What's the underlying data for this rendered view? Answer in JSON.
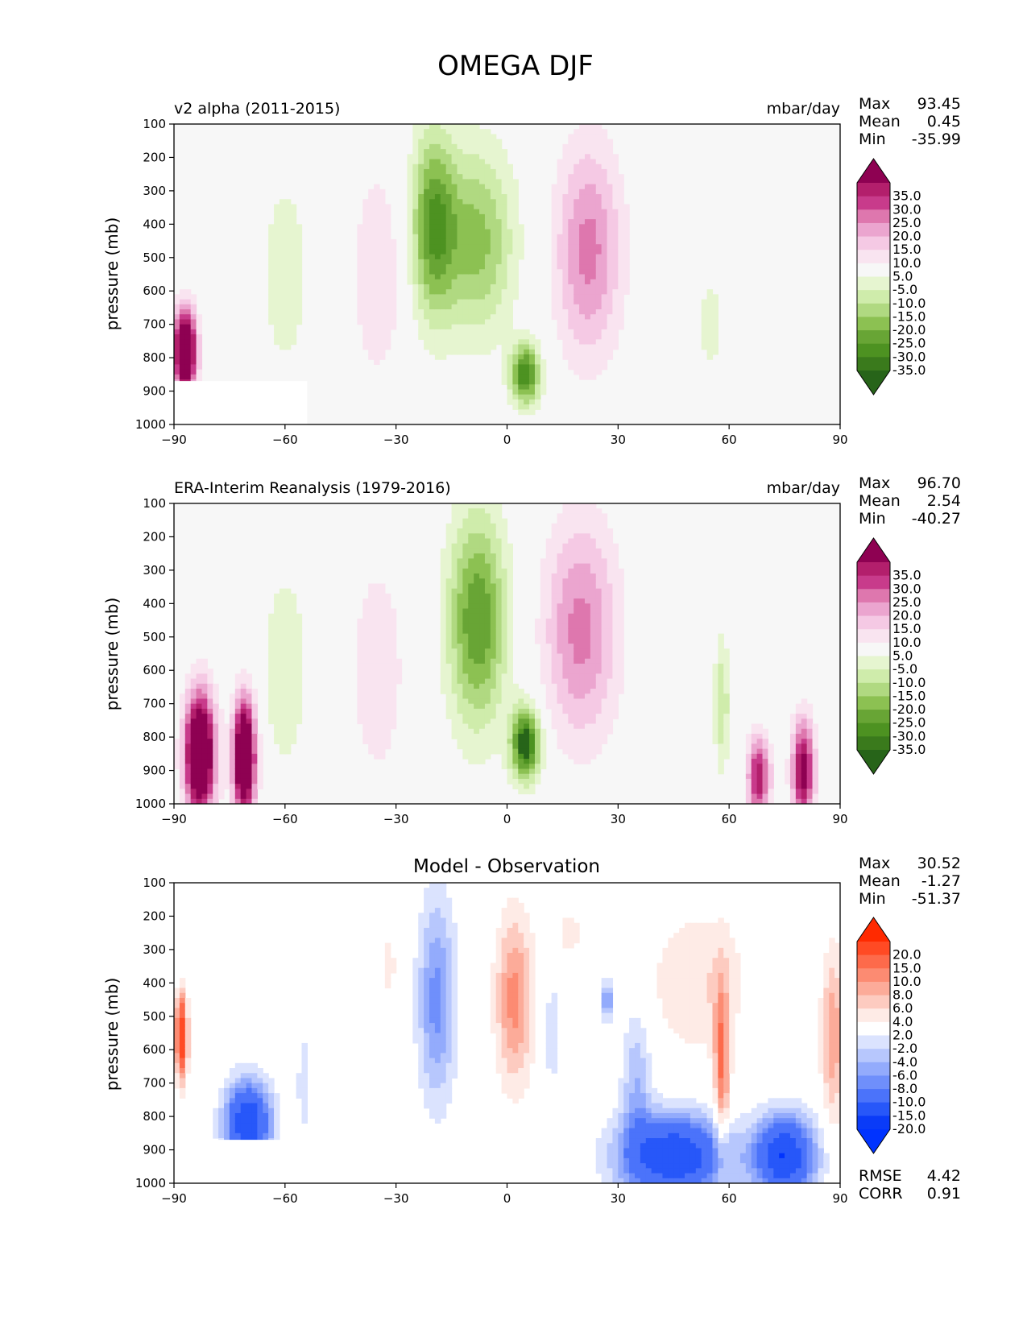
{
  "figure_title": "OMEGA DJF",
  "chart_data": [
    {
      "type": "heatmap",
      "title_left": "v2 alpha (2011-2015)",
      "units": "mbar/day",
      "ylabel": "pressure (mb)",
      "xlim": [
        -90,
        90
      ],
      "ylim": [
        100,
        1000
      ],
      "xticks": [
        "−90",
        "−60",
        "−30",
        "0",
        "30",
        "60",
        "90"
      ],
      "yticks": [
        "100",
        "200",
        "300",
        "400",
        "500",
        "600",
        "700",
        "800",
        "900",
        "1000"
      ],
      "stats": {
        "max_label": "Max",
        "max": "93.45",
        "mean_label": "Mean",
        "mean": "0.45",
        "min_label": "Min",
        "min": "-35.99"
      },
      "colorbar_labels": [
        "35.0",
        "30.0",
        "25.0",
        "20.0",
        "15.0",
        "10.0",
        "5.0",
        "-5.0",
        "-10.0",
        "-15.0",
        "-20.0",
        "-25.0",
        "-30.0",
        "-35.0"
      ],
      "colorbar_colors": [
        "#8e0152",
        "#b31f6c",
        "#c83b8b",
        "#de77ae",
        "#eba5cf",
        "#f5c9e4",
        "#f9e4f0",
        "#f7f7f7",
        "#e6f5d0",
        "#cfecab",
        "#b0d981",
        "#8cc152",
        "#68a535",
        "#4d9221",
        "#3a7a1c",
        "#276419"
      ],
      "features": [
        {
          "lon": -20,
          "lat_w": 6,
          "p": 400,
          "p_w": 280,
          "value": -28
        },
        {
          "lon": -8,
          "lat_w": 10,
          "p": 450,
          "p_w": 280,
          "value": -22
        },
        {
          "lon": 5,
          "lat_w": 4,
          "p": 850,
          "p_w": 90,
          "value": -35
        },
        {
          "lon": 22,
          "lat_w": 9,
          "p": 480,
          "p_w": 320,
          "value": 22
        },
        {
          "lon": -35,
          "lat_w": 7,
          "p": 550,
          "p_w": 320,
          "value": 10
        },
        {
          "lon": -60,
          "lat_w": 6,
          "p": 550,
          "p_w": 280,
          "value": -10
        },
        {
          "lon": -87,
          "lat_w": 3,
          "p": 780,
          "p_w": 120,
          "value": 60
        },
        {
          "lon": 55,
          "lat_w": 6,
          "p": 700,
          "p_w": 250,
          "value": -6
        }
      ],
      "masked_region": {
        "lon_min": -90,
        "lon_max": -54,
        "p_min": 870,
        "p_max": 1000
      }
    },
    {
      "type": "heatmap",
      "title_left": "ERA-Interim Reanalysis (1979-2016)",
      "units": "mbar/day",
      "ylabel": "pressure (mb)",
      "xlim": [
        -90,
        90
      ],
      "ylim": [
        100,
        1000
      ],
      "xticks": [
        "−90",
        "−60",
        "−30",
        "0",
        "30",
        "60",
        "90"
      ],
      "yticks": [
        "100",
        "200",
        "300",
        "400",
        "500",
        "600",
        "700",
        "800",
        "900",
        "1000"
      ],
      "stats": {
        "max_label": "Max",
        "max": "96.70",
        "mean_label": "Mean",
        "mean": "2.54",
        "min_label": "Min",
        "min": "-40.27"
      },
      "colorbar_labels": [
        "35.0",
        "30.0",
        "25.0",
        "20.0",
        "15.0",
        "10.0",
        "5.0",
        "-5.0",
        "-10.0",
        "-15.0",
        "-20.0",
        "-25.0",
        "-30.0",
        "-35.0"
      ],
      "colorbar_colors": [
        "#8e0152",
        "#b31f6c",
        "#c83b8b",
        "#de77ae",
        "#eba5cf",
        "#f5c9e4",
        "#f9e4f0",
        "#f7f7f7",
        "#e6f5d0",
        "#cfecab",
        "#b0d981",
        "#8cc152",
        "#68a535",
        "#4d9221",
        "#3a7a1c",
        "#276419"
      ],
      "features": [
        {
          "lon": -8,
          "lat_w": 8,
          "p": 450,
          "p_w": 320,
          "value": -30
        },
        {
          "lon": 5,
          "lat_w": 4,
          "p": 820,
          "p_w": 110,
          "value": -40
        },
        {
          "lon": 20,
          "lat_w": 10,
          "p": 480,
          "p_w": 330,
          "value": 22
        },
        {
          "lon": -35,
          "lat_w": 7,
          "p": 600,
          "p_w": 320,
          "value": 10
        },
        {
          "lon": -60,
          "lat_w": 6,
          "p": 600,
          "p_w": 300,
          "value": -10
        },
        {
          "lon": -83,
          "lat_w": 4,
          "p": 850,
          "p_w": 180,
          "value": 60
        },
        {
          "lon": -71,
          "lat_w": 3,
          "p": 860,
          "p_w": 170,
          "value": 60
        },
        {
          "lon": 58,
          "lat_w": 2,
          "p": 700,
          "p_w": 200,
          "value": -15
        },
        {
          "lon": 80,
          "lat_w": 3,
          "p": 900,
          "p_w": 150,
          "value": 40
        },
        {
          "lon": 68,
          "lat_w": 3,
          "p": 920,
          "p_w": 120,
          "value": 35
        }
      ],
      "masked_region": null
    },
    {
      "type": "heatmap",
      "title_center": "Model - Observation",
      "ylabel": "pressure (mb)",
      "xlim": [
        -90,
        90
      ],
      "ylim": [
        100,
        1000
      ],
      "xticks": [
        "−90",
        "−60",
        "−30",
        "0",
        "30",
        "60",
        "90"
      ],
      "yticks": [
        "100",
        "200",
        "300",
        "400",
        "500",
        "600",
        "700",
        "800",
        "900",
        "1000"
      ],
      "stats": {
        "max_label": "Max",
        "max": "30.52",
        "mean_label": "Mean",
        "mean": "-1.27",
        "min_label": "Min",
        "min": "-51.37"
      },
      "metrics": {
        "rmse_label": "RMSE",
        "rmse": "4.42",
        "corr_label": "CORR",
        "corr": "0.91"
      },
      "colorbar_labels": [
        "20.0",
        "15.0",
        "10.0",
        "8.0",
        "6.0",
        "4.0",
        "2.0",
        "-2.0",
        "-4.0",
        "-6.0",
        "-8.0",
        "-10.0",
        "-15.0",
        "-20.0"
      ],
      "colorbar_colors": [
        "#ff2a00",
        "#ff4a24",
        "#fd6a4b",
        "#fc8b72",
        "#fcab99",
        "#fdcbc0",
        "#feebe6",
        "#ffffff",
        "#dbe3fe",
        "#b7c7fd",
        "#93abfc",
        "#6f8ffb",
        "#4b73fa",
        "#2757f9",
        "#0a3bf8",
        "#0033ff"
      ],
      "features": [
        {
          "lon": -19,
          "lat_w": 5,
          "p": 450,
          "p_w": 300,
          "value": -9
        },
        {
          "lon": 2,
          "lat_w": 5,
          "p": 450,
          "p_w": 250,
          "value": 9
        },
        {
          "lon": 45,
          "lat_w": 14,
          "p": 920,
          "p_w": 120,
          "value": -20
        },
        {
          "lon": 75,
          "lat_w": 8,
          "p": 920,
          "p_w": 120,
          "value": -20
        },
        {
          "lon": -70,
          "lat_w": 6,
          "p": 820,
          "p_w": 120,
          "value": -20
        },
        {
          "lon": 58,
          "lat_w": 2,
          "p": 650,
          "p_w": 250,
          "value": 10
        },
        {
          "lon": 88,
          "lat_w": 3,
          "p": 560,
          "p_w": 250,
          "value": 8
        },
        {
          "lon": 52,
          "lat_w": 14,
          "p": 400,
          "p_w": 220,
          "value": 4
        },
        {
          "lon": 17,
          "lat_w": 3,
          "p": 250,
          "p_w": 60,
          "value": 4
        },
        {
          "lon": -32,
          "lat_w": 3,
          "p": 350,
          "p_w": 140,
          "value": 2.5
        },
        {
          "lon": -88,
          "lat_w": 1.5,
          "p": 560,
          "p_w": 120,
          "value": 20
        },
        {
          "lon": 27,
          "lat_w": 1.2,
          "p": 450,
          "p_w": 60,
          "value": -10
        },
        {
          "lon": 35,
          "lat_w": 4,
          "p": 700,
          "p_w": 220,
          "value": -6
        },
        {
          "lon": 12,
          "lat_w": 2,
          "p": 550,
          "p_w": 250,
          "value": -3
        },
        {
          "lon": -55,
          "lat_w": 2,
          "p": 700,
          "p_w": 200,
          "value": -3
        }
      ],
      "masked_region": {
        "lon_min": -90,
        "lon_max": -54,
        "p_min": 870,
        "p_max": 1000
      }
    }
  ]
}
